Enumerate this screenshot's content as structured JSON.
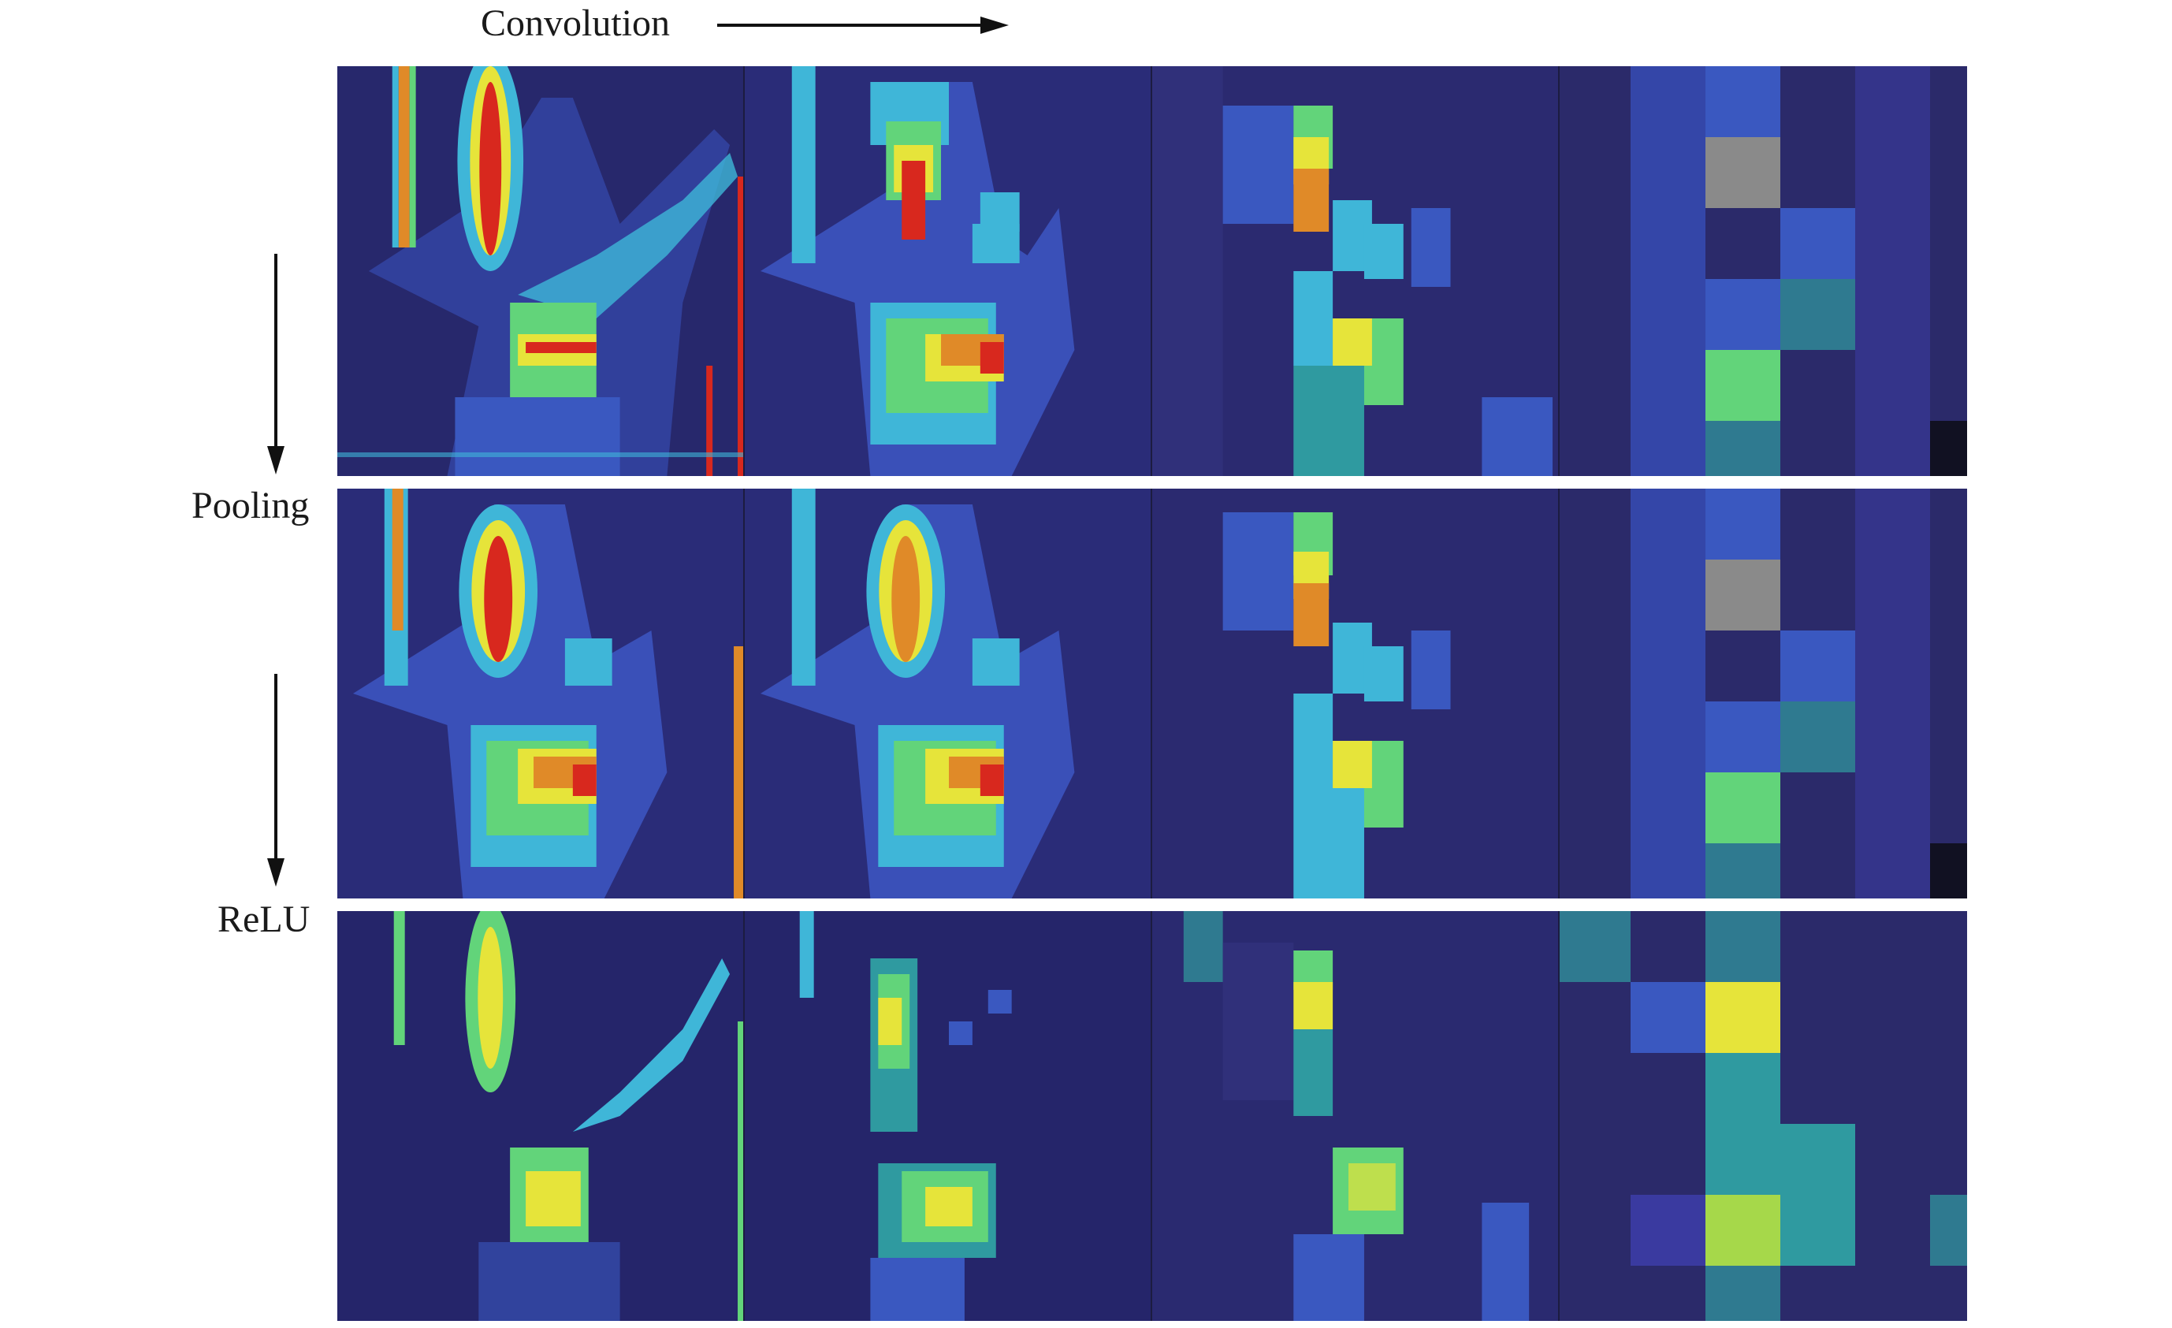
{
  "labels": {
    "convolution": "Convolution",
    "pooling": "Pooling",
    "relu": "ReLU"
  },
  "colors": {
    "background": "#2a2a72",
    "dark_navy": "#25256a",
    "blue": "#3a58c0",
    "cyan": "#3fb6d8",
    "green": "#62d47a",
    "yellow": "#e6e43a",
    "orange": "#e88a2a",
    "red": "#d8281e",
    "teal": "#2f9aa0",
    "gray": "#8a8a8a"
  },
  "rows": [
    {
      "name": "convolution",
      "panels": [
        "fine",
        "medium",
        "coarse",
        "very-coarse"
      ]
    },
    {
      "name": "pooling",
      "panels": [
        "fine",
        "medium",
        "coarse",
        "very-coarse"
      ]
    },
    {
      "name": "relu",
      "panels": [
        "fine",
        "medium",
        "coarse",
        "very-coarse"
      ]
    }
  ]
}
